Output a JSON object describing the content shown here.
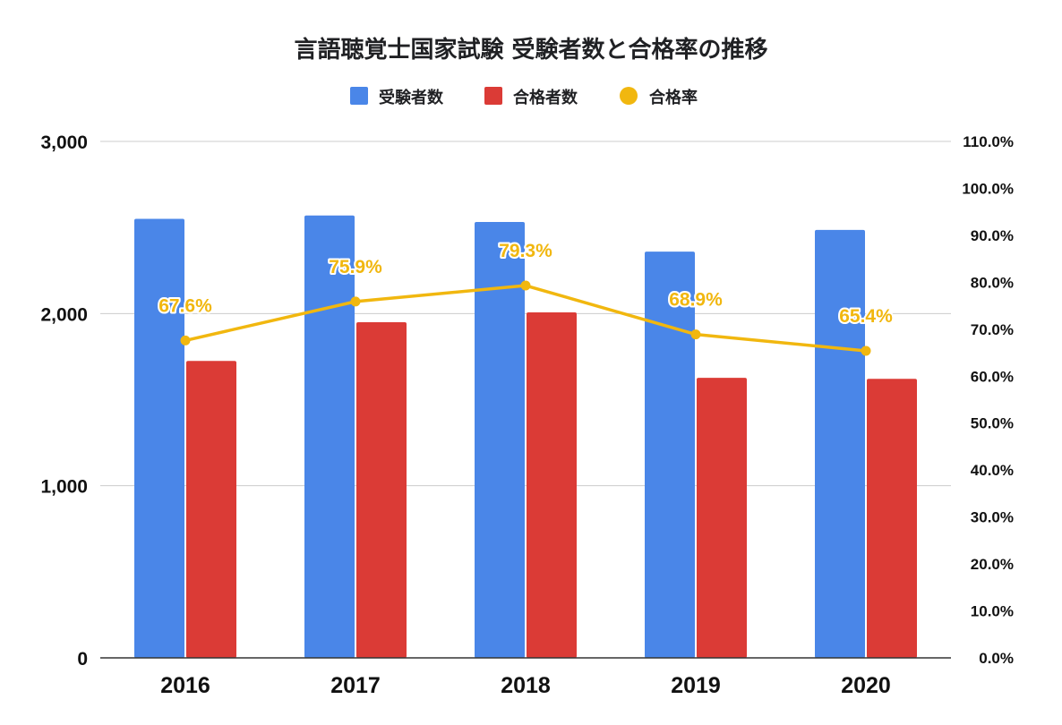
{
  "chart_data": {
    "type": "bar",
    "title": "言語聴覚士国家試験 受験者数と合格率の推移",
    "categories": [
      "2016",
      "2017",
      "2018",
      "2019",
      "2020"
    ],
    "series": [
      {
        "name": "受験者数",
        "kind": "bar",
        "axis": "left",
        "color": "#4a86e8",
        "values": [
          2550,
          2570,
          2532,
          2360,
          2486
        ]
      },
      {
        "name": "合格者数",
        "kind": "bar",
        "axis": "left",
        "color": "#db3b36",
        "values": [
          1725,
          1950,
          2007,
          1627,
          1621
        ]
      },
      {
        "name": "合格率",
        "kind": "line",
        "axis": "right",
        "color": "#f1b70f",
        "values": [
          67.6,
          75.9,
          79.3,
          68.9,
          65.4
        ],
        "labels": [
          "67.6%",
          "75.9%",
          "79.3%",
          "68.9%",
          "65.4%"
        ]
      }
    ],
    "left_axis": {
      "min": 0,
      "max": 3000,
      "ticks": [
        0,
        1000,
        2000,
        3000
      ],
      "tick_labels": [
        "0",
        "1,000",
        "2,000",
        "3,000"
      ]
    },
    "right_axis": {
      "min": 0,
      "max": 110,
      "ticks": [
        0,
        10,
        20,
        30,
        40,
        50,
        60,
        70,
        80,
        90,
        100,
        110
      ],
      "tick_labels": [
        "0.0%",
        "10.0%",
        "20.0%",
        "30.0%",
        "40.0%",
        "50.0%",
        "60.0%",
        "70.0%",
        "80.0%",
        "90.0%",
        "100.0%",
        "110.0%"
      ]
    },
    "legend": {
      "position": "top"
    },
    "grid": true
  }
}
